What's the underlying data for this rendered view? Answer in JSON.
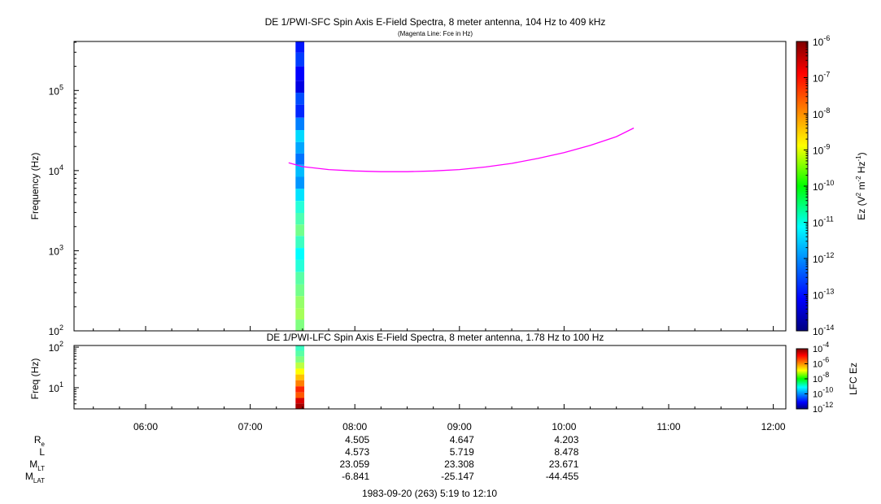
{
  "chart_data": [
    {
      "type": "heatmap",
      "title": "DE 1/PWI-SFC  Spin Axis E-Field Spectra, 8 meter antenna, 104 Hz to 409 kHz",
      "subtitle": "(Magenta Line: Fce in Hz)",
      "xlabel": "",
      "ylabel": "Frequency (Hz)",
      "xlim": [
        "05:19",
        "12:10"
      ],
      "ylim": [
        100,
        409000
      ],
      "yscale": "log",
      "y_ticks": [
        {
          "value": 100,
          "base": "10",
          "exp": "2"
        },
        {
          "value": 1000,
          "base": "10",
          "exp": "3"
        },
        {
          "value": 10000,
          "base": "10",
          "exp": "4"
        },
        {
          "value": 100000,
          "base": "10",
          "exp": "5"
        }
      ],
      "colorbar": {
        "label_main": "Ez (V",
        "sup1": "2",
        "label_mid1": " m",
        "sup2": "-2",
        "label_mid2": " Hz",
        "sup3": "-1",
        "label_end": ")",
        "scale": "log",
        "range": [
          1e-14,
          1e-06
        ],
        "ticks": [
          {
            "value": 1e-14,
            "base": "10",
            "exp": "-14"
          },
          {
            "value": 1e-13,
            "base": "10",
            "exp": "-13"
          },
          {
            "value": 1e-12,
            "base": "10",
            "exp": "-12"
          },
          {
            "value": 1e-11,
            "base": "10",
            "exp": "-11"
          },
          {
            "value": 1e-10,
            "base": "10",
            "exp": "-10"
          },
          {
            "value": 1e-09,
            "base": "10",
            "exp": "-9"
          },
          {
            "value": 1e-08,
            "base": "10",
            "exp": "-8"
          },
          {
            "value": 1e-07,
            "base": "10",
            "exp": "-7"
          },
          {
            "value": 1e-06,
            "base": "10",
            "exp": "-6"
          }
        ]
      },
      "data_strip_time": [
        "07:26",
        "07:31"
      ],
      "spectrum_column": [
        {
          "f": 350000,
          "ez": 1.5e-13
        },
        {
          "f": 250000,
          "ez": 3e-13
        },
        {
          "f": 160000,
          "ez": 1e-13
        },
        {
          "f": 110000,
          "ez": 6e-14
        },
        {
          "f": 80000,
          "ez": 4e-13
        },
        {
          "f": 55000,
          "ez": 2e-13
        },
        {
          "f": 38000,
          "ez": 1e-12
        },
        {
          "f": 27000,
          "ez": 5e-12
        },
        {
          "f": 19000,
          "ez": 2e-12
        },
        {
          "f": 14000,
          "ez": 8e-13
        },
        {
          "f": 10000,
          "ez": 3e-12
        },
        {
          "f": 7000,
          "ez": 1.5e-12
        },
        {
          "f": 5000,
          "ez": 6e-12
        },
        {
          "f": 3500,
          "ez": 2e-11
        },
        {
          "f": 2500,
          "ez": 4e-11
        },
        {
          "f": 1800,
          "ez": 8e-11
        },
        {
          "f": 1300,
          "ez": 3e-11
        },
        {
          "f": 900,
          "ez": 1e-11
        },
        {
          "f": 650,
          "ez": 2e-11
        },
        {
          "f": 450,
          "ez": 5e-11
        },
        {
          "f": 320,
          "ez": 8e-11
        },
        {
          "f": 230,
          "ez": 1.5e-10
        },
        {
          "f": 160,
          "ez": 2e-10
        },
        {
          "f": 120,
          "ez": 1e-10
        }
      ],
      "series": [
        {
          "name": "Fce",
          "color": "#ff00ff",
          "time": [
            "07:22",
            "07:30",
            "07:45",
            "08:00",
            "08:15",
            "08:30",
            "08:45",
            "09:00",
            "09:15",
            "09:30",
            "09:45",
            "10:00",
            "10:15",
            "10:30",
            "10:40"
          ],
          "values": [
            12500,
            11200,
            10300,
            9900,
            9700,
            9700,
            9900,
            10300,
            11100,
            12300,
            14200,
            16800,
            20600,
            26500,
            34000
          ]
        }
      ]
    },
    {
      "type": "heatmap",
      "title": "DE 1/PWI-LFC  Spin Axis E-Field Spectra, 8 meter antenna, 1.78 Hz to 100 Hz",
      "xlabel": "",
      "ylabel": "Freq (Hz)",
      "ylim": [
        3,
        110
      ],
      "yscale": "log",
      "y_ticks": [
        {
          "value": 10,
          "base": "10",
          "exp": "1"
        },
        {
          "value": 100,
          "base": "10",
          "exp": "2"
        }
      ],
      "colorbar": {
        "label": "LFC Ez",
        "scale": "log",
        "range": [
          1e-12,
          0.0001
        ],
        "ticks": [
          {
            "value": 1e-12,
            "base": "10",
            "exp": "-12"
          },
          {
            "value": 1e-10,
            "base": "10",
            "exp": "-10"
          },
          {
            "value": 1e-08,
            "base": "10",
            "exp": "-8"
          },
          {
            "value": 1e-06,
            "base": "10",
            "exp": "-6"
          },
          {
            "value": 0.0001,
            "base": "10",
            "exp": "-4"
          }
        ]
      },
      "spectrum_column": [
        {
          "f": 95,
          "ez": 3e-09
        },
        {
          "f": 70,
          "ez": 5e-09
        },
        {
          "f": 50,
          "ez": 1e-08
        },
        {
          "f": 35,
          "ez": 3e-08
        },
        {
          "f": 25,
          "ez": 1e-07
        },
        {
          "f": 18,
          "ez": 3e-07
        },
        {
          "f": 13,
          "ez": 1e-06
        },
        {
          "f": 9,
          "ez": 5e-06
        },
        {
          "f": 6.5,
          "ez": 2e-06
        },
        {
          "f": 4.8,
          "ez": 2e-05
        },
        {
          "f": 3.5,
          "ez": 5e-05
        }
      ]
    }
  ],
  "x_axis": {
    "ticks": [
      "06:00",
      "07:00",
      "08:00",
      "09:00",
      "10:00",
      "11:00",
      "12:00"
    ]
  },
  "ephemeris": {
    "labels": [
      {
        "main": "R",
        "sub": "e"
      },
      {
        "main": "L",
        "sub": ""
      },
      {
        "main": "M",
        "sub": "LT"
      },
      {
        "main": "M",
        "sub": "LAT"
      }
    ],
    "columns": [
      {
        "time": "08:00",
        "values": [
          "4.505",
          "4.573",
          "23.059",
          "-6.841"
        ]
      },
      {
        "time": "09:00",
        "values": [
          "4.647",
          "5.719",
          "23.308",
          "-25.147"
        ]
      },
      {
        "time": "10:00",
        "values": [
          "4.203",
          "8.478",
          "23.671",
          "-44.455"
        ]
      }
    ]
  },
  "footer": "1983-09-20 (263) 5:19 to 12:10"
}
